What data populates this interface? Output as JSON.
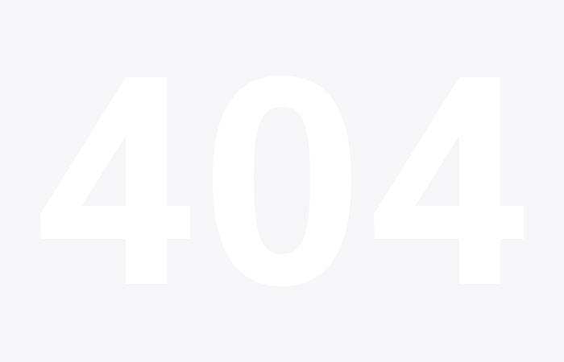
{
  "page": {
    "background_color": "#f6f6f8",
    "error_code": "404",
    "error_code_color": "#ffffff"
  }
}
